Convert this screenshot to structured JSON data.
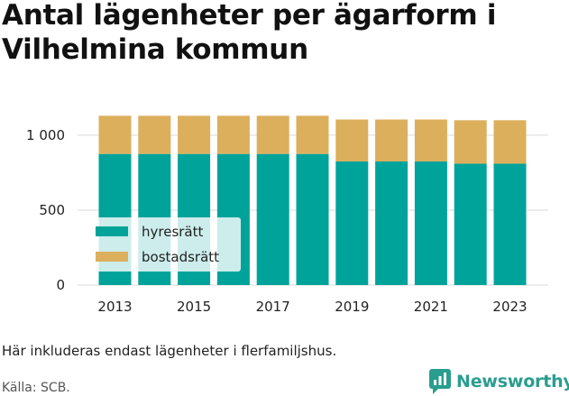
{
  "title": "Antal lägenheter per ägarform i Vilhelmina kommun",
  "note": "Här inkluderas endast lägenheter i flerfamiljshus.",
  "source": "Källa: SCB.",
  "brand": {
    "name": "Newsworthy",
    "icon": "newsworthy-logo-icon"
  },
  "colors": {
    "hyresratt": "#00a39a",
    "bostadsratt": "#dcaf5d",
    "grid": "#d9d9d9",
    "brand": "#2a9d8f"
  },
  "chart_data": {
    "type": "bar",
    "stacked": true,
    "categories": [
      "2013",
      "2014",
      "2015",
      "2016",
      "2017",
      "2018",
      "2019",
      "2020",
      "2021",
      "2022",
      "2023"
    ],
    "x_tick_labels": [
      "2013",
      "2015",
      "2017",
      "2019",
      "2021",
      "2023"
    ],
    "y_tick_labels": [
      "0",
      "500",
      "1 000"
    ],
    "y_ticks": [
      0,
      500,
      1000
    ],
    "ylim": [
      0,
      1150
    ],
    "grid": true,
    "legend_position": "center-left",
    "series": [
      {
        "name": "hyresrätt",
        "color": "#00a39a",
        "values": [
          875,
          875,
          875,
          875,
          875,
          875,
          825,
          825,
          825,
          810,
          810
        ]
      },
      {
        "name": "bostadsrätt",
        "color": "#dcaf5d",
        "values": [
          255,
          255,
          255,
          255,
          255,
          255,
          280,
          280,
          280,
          290,
          290
        ]
      }
    ]
  }
}
